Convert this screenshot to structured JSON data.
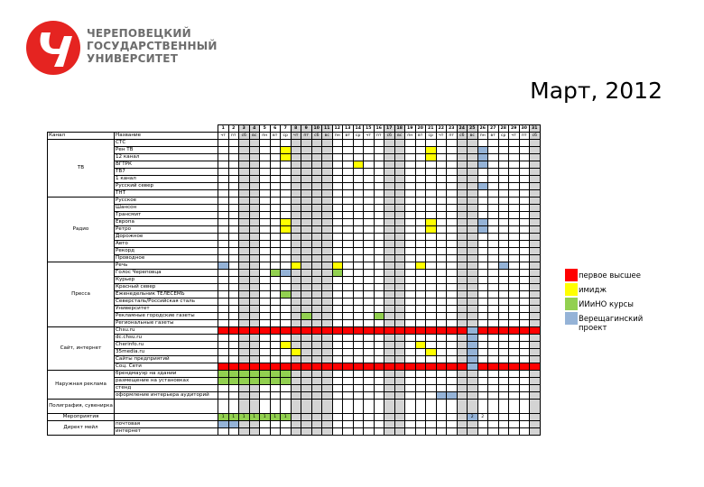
{
  "university": {
    "name_lines": [
      "ЧЕРЕПОВЕЦКИЙ",
      "ГОСУДАРСТВЕННЫЙ",
      "УНИВЕРСИТЕТ"
    ],
    "logo_color": "#e52421"
  },
  "title": "Март, 2012",
  "table": {
    "channel_header": "Канал",
    "name_header": "Название",
    "days": [
      "1",
      "2",
      "3",
      "4",
      "5",
      "6",
      "7",
      "8",
      "9",
      "10",
      "11",
      "12",
      "13",
      "14",
      "15",
      "16",
      "17",
      "18",
      "19",
      "20",
      "21",
      "22",
      "23",
      "24",
      "25",
      "26",
      "27",
      "28",
      "29",
      "30",
      "31"
    ],
    "weekdays": [
      "чт",
      "пт",
      "сб",
      "вс",
      "пн",
      "вт",
      "ср",
      "чт",
      "пт",
      "сб",
      "вс",
      "пн",
      "вт",
      "ср",
      "чт",
      "пт",
      "сб",
      "вс",
      "пн",
      "вт",
      "ср",
      "чт",
      "пт",
      "сб",
      "вс",
      "пн",
      "вт",
      "ср",
      "чт",
      "пт",
      "сб"
    ],
    "weekend_days": [
      3,
      4,
      8,
      9,
      10,
      11,
      17,
      18,
      24,
      25,
      31
    ],
    "colors": {
      "y": "#ffff00",
      "r": "#ff0000",
      "g": "#92d050",
      "b": "#95b3d7",
      "weekend": "#d4d4d4"
    },
    "groups": [
      {
        "channel": "ТВ",
        "rows": [
          {
            "name": "СТС",
            "marks": {}
          },
          {
            "name": "Рен ТВ",
            "marks": {
              "7": "y",
              "21": "y",
              "26": "b"
            }
          },
          {
            "name": "12 канал",
            "marks": {
              "7": "y",
              "21": "y",
              "26": "b"
            }
          },
          {
            "name": "ВГТРК",
            "marks": {
              "14": "y",
              "26": "b"
            }
          },
          {
            "name": "ТВ7",
            "marks": {}
          },
          {
            "name": "1 канал",
            "marks": {}
          },
          {
            "name": "Русский север",
            "marks": {
              "26": "b"
            }
          },
          {
            "name": "ТНТ",
            "marks": {}
          }
        ]
      },
      {
        "channel": "Радио",
        "rows": [
          {
            "name": "Русское",
            "marks": {}
          },
          {
            "name": "Шансон",
            "marks": {}
          },
          {
            "name": "Трансмит",
            "marks": {}
          },
          {
            "name": "Европа",
            "marks": {
              "7": "y",
              "21": "y",
              "26": "b"
            }
          },
          {
            "name": "Ретро",
            "marks": {
              "7": "y",
              "21": "y",
              "26": "b"
            }
          },
          {
            "name": "Дорожное",
            "marks": {}
          },
          {
            "name": "Авто",
            "marks": {}
          },
          {
            "name": "Рекорд",
            "marks": {}
          },
          {
            "name": "Проводное",
            "marks": {}
          }
        ]
      },
      {
        "channel": "Пресса",
        "rows": [
          {
            "name": "Речь",
            "marks": {
              "1": "b",
              "8": "y",
              "12": "y",
              "20": "y",
              "28": "b"
            }
          },
          {
            "name": "Голос Череповца",
            "marks": {
              "6": "g",
              "7": "b",
              "12": "g"
            }
          },
          {
            "name": "Курьер",
            "marks": {}
          },
          {
            "name": "Красный север",
            "marks": {}
          },
          {
            "name": "Еженедельник ТЕЛЕСЕМЬ",
            "marks": {
              "7": "g"
            }
          },
          {
            "name": "Северсталь/Российская сталь",
            "marks": {}
          },
          {
            "name": "Университет",
            "marks": {}
          },
          {
            "name": "Рекламные городские газеты",
            "marks": {
              "9": "g",
              "16": "g"
            }
          },
          {
            "name": "Региональные газеты",
            "marks": {}
          }
        ]
      },
      {
        "channel": "Сайт, интернет",
        "rows": [
          {
            "name": "Chsu.ru",
            "marks": {
              "all": "r",
              "25": "b"
            }
          },
          {
            "name": "dc.chsu.ru",
            "marks": {
              "25": "b"
            }
          },
          {
            "name": "Cherinfo.ru",
            "marks": {
              "7": "y",
              "20": "y",
              "25": "b"
            }
          },
          {
            "name": "35media.ru",
            "marks": {
              "8": "y",
              "21": "y",
              "25": "b"
            }
          },
          {
            "name": "Сайты предприятий",
            "marks": {
              "25": "b"
            }
          },
          {
            "name": "Соц. Сети",
            "marks": {
              "all": "r",
              "25": "b"
            }
          }
        ]
      },
      {
        "channel": "Наружная реклама",
        "rows": [
          {
            "name": "брендмауэр на здании",
            "marks": {
              "1": "g",
              "2": "g",
              "3": "g",
              "4": "g",
              "5": "g",
              "6": "g",
              "7": "g"
            }
          },
          {
            "name": "размещение на установках",
            "marks": {
              "1": "g",
              "2": "g",
              "3": "g",
              "4": "g",
              "5": "g",
              "6": "g",
              "7": "g"
            }
          },
          {
            "name": "стенд",
            "marks": {}
          },
          {
            "name": "оформление интерьера аудиторий",
            "marks": {
              "22": "b",
              "23": "b"
            }
          }
        ]
      },
      {
        "channel": "Полиграфия, сувенирка",
        "tall": true,
        "rows": [
          {
            "name": "",
            "marks": {}
          }
        ]
      },
      {
        "channel": "Мероприятия",
        "rows": [
          {
            "name": "",
            "marks": {
              "1": "g1",
              "2": "g1",
              "3": "g1",
              "4": "g1",
              "5": "g1",
              "6": "g1",
              "7": "g1",
              "25": "b2",
              "26": "2"
            }
          }
        ]
      },
      {
        "channel": "Директ мейл",
        "rows": [
          {
            "name": "почтовая",
            "marks": {
              "1": "b",
              "2": "b"
            }
          },
          {
            "name": "интернет",
            "marks": {}
          }
        ]
      }
    ]
  },
  "legend": [
    {
      "color": "#ff0000",
      "label": "первое высшее"
    },
    {
      "color": "#ffff00",
      "label": "имидж"
    },
    {
      "color": "#92d050",
      "label": "ИИиНО курсы"
    },
    {
      "color": "#95b3d7",
      "label": "Верещагинский проект"
    }
  ]
}
